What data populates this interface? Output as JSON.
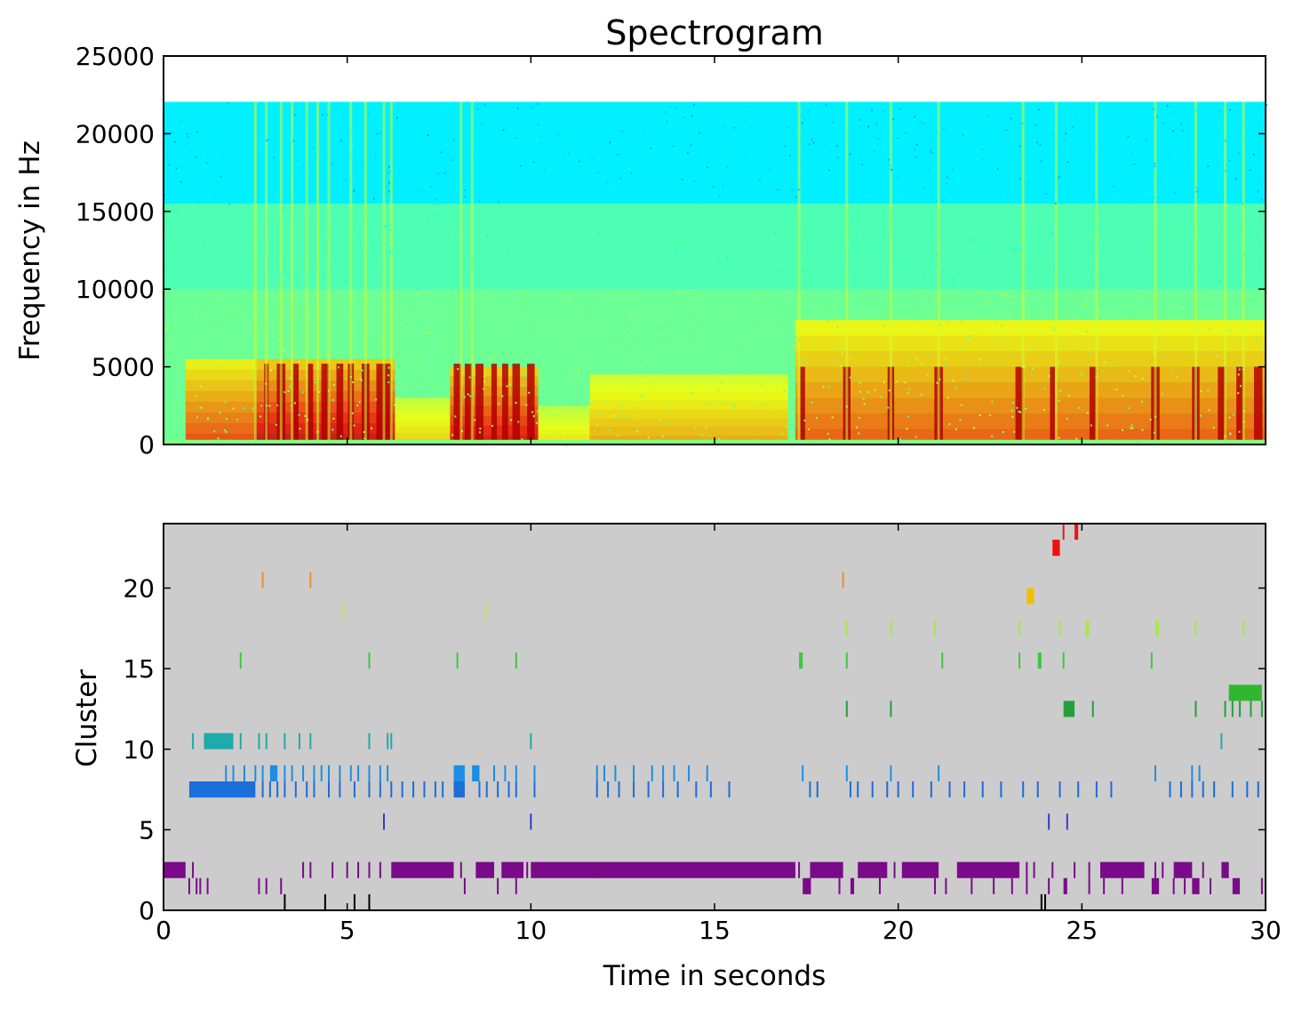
{
  "chart_data": [
    {
      "type": "heatmap",
      "title": "Spectrogram",
      "xlabel": "",
      "ylabel": "Frequency in Hz",
      "xlim": [
        0,
        30
      ],
      "ylim": [
        0,
        25000
      ],
      "x_ticks": [
        0,
        5,
        10,
        15,
        20,
        25,
        30
      ],
      "y_ticks": [
        0,
        5000,
        10000,
        15000,
        20000,
        25000
      ],
      "y_tick_labels": [
        "0",
        "5000",
        "10000",
        "15000",
        "20000",
        "25000"
      ],
      "data_top_hz": 22050,
      "noise_band_hz": [
        15500,
        22050
      ],
      "energy_segments": [
        {
          "start": 0.6,
          "end": 2.5,
          "max_hz": 5500,
          "level": 0.82
        },
        {
          "start": 2.5,
          "end": 6.3,
          "max_hz": 5500,
          "level": 0.92
        },
        {
          "start": 6.3,
          "end": 7.8,
          "max_hz": 3000,
          "level": 0.68
        },
        {
          "start": 7.8,
          "end": 10.2,
          "max_hz": 5000,
          "level": 0.9
        },
        {
          "start": 10.2,
          "end": 11.6,
          "max_hz": 2500,
          "level": 0.66
        },
        {
          "start": 11.6,
          "end": 17.0,
          "max_hz": 4500,
          "level": 0.72
        },
        {
          "start": 17.2,
          "end": 30.0,
          "max_hz": 8000,
          "level": 0.8
        }
      ],
      "burst_times": [
        2.8,
        3.2,
        3.6,
        4.0,
        4.4,
        4.8,
        5.1,
        5.5,
        5.9,
        6.1,
        8.0,
        8.3,
        8.6,
        9.0,
        9.3,
        9.6,
        10.0,
        17.4,
        18.6,
        19.8,
        21.1,
        23.3,
        24.2,
        25.3,
        27.0,
        28.1,
        28.8,
        29.3,
        29.8
      ],
      "vertical_streaks": [
        2.5,
        2.8,
        3.2,
        3.5,
        3.9,
        4.2,
        4.5,
        5.1,
        5.5,
        6.0,
        6.2,
        8.1,
        8.4,
        17.3,
        18.6,
        19.8,
        21.1,
        23.4,
        24.3,
        25.4,
        27.0,
        28.1,
        28.9,
        29.4
      ]
    },
    {
      "type": "scatter",
      "title": "",
      "xlabel": "Time in seconds",
      "ylabel": "Cluster",
      "xlim": [
        0,
        30
      ],
      "ylim": [
        0,
        24
      ],
      "x_ticks": [
        0,
        5,
        10,
        15,
        20,
        25,
        30
      ],
      "y_ticks": [
        0,
        5,
        10,
        15,
        20
      ],
      "series": [
        {
          "cluster": 0,
          "color": "#000000",
          "dense": [],
          "ticks": [
            3.3,
            4.4,
            5.2,
            5.6,
            23.9,
            24.0
          ]
        },
        {
          "cluster": 1,
          "color": "#7a0a8a",
          "dense": [
            [
              17.4,
              17.6
            ],
            [
              18.7,
              18.8
            ],
            [
              24.5,
              24.6
            ],
            [
              26.9,
              27.1
            ],
            [
              28.0,
              28.2
            ],
            [
              29.1,
              29.3
            ]
          ],
          "ticks": [
            0.7,
            0.9,
            1.0,
            1.2,
            2.6,
            2.8,
            3.2,
            8.2,
            9.1,
            9.6,
            17.6,
            18.4,
            19.5,
            21.0,
            21.3,
            22.0,
            22.6,
            23.1,
            23.5,
            24.1,
            25.2,
            25.6,
            26.1,
            27.5,
            27.8,
            28.5,
            29.9
          ]
        },
        {
          "cluster": 2,
          "color": "#7a0a8a",
          "dense": [
            [
              0.0,
              0.6
            ],
            [
              6.2,
              7.9
            ],
            [
              8.5,
              9.0
            ],
            [
              9.2,
              9.8
            ],
            [
              10.0,
              17.2
            ],
            [
              17.6,
              18.5
            ],
            [
              18.9,
              19.7
            ],
            [
              20.1,
              21.1
            ],
            [
              21.6,
              23.3
            ],
            [
              25.5,
              26.7
            ],
            [
              27.5,
              28.0
            ],
            [
              28.8,
              29.0
            ]
          ],
          "ticks": [
            0.8,
            3.8,
            4.0,
            4.6,
            5.0,
            5.3,
            5.6,
            5.9,
            8.1,
            9.9,
            11.7,
            17.3,
            19.9,
            23.5,
            23.7,
            24.2,
            24.8,
            25.2,
            27.0,
            27.2,
            28.3
          ]
        },
        {
          "cluster": 5,
          "color": "#3a3acb",
          "dense": [],
          "ticks": [
            6.0,
            10.0,
            24.1,
            24.6
          ]
        },
        {
          "cluster": 7,
          "color": "#1c6ed9",
          "dense": [
            [
              0.7,
              2.5
            ],
            [
              7.9,
              8.2
            ]
          ],
          "ticks": [
            2.7,
            2.9,
            3.1,
            3.3,
            3.6,
            3.9,
            4.1,
            4.5,
            4.8,
            5.2,
            5.6,
            5.9,
            6.2,
            6.5,
            6.8,
            7.1,
            7.4,
            7.6,
            8.6,
            8.8,
            9.1,
            9.4,
            9.6,
            10.1,
            11.8,
            12.1,
            12.4,
            12.8,
            13.2,
            13.6,
            14.0,
            14.5,
            14.9,
            15.4,
            17.6,
            17.8,
            18.7,
            18.9,
            19.3,
            19.7,
            20.0,
            20.4,
            20.9,
            21.4,
            21.8,
            22.3,
            22.8,
            23.4,
            23.8,
            24.4,
            24.9,
            25.4,
            25.8,
            27.4,
            27.7,
            28.0,
            28.3,
            28.6,
            29.1,
            29.5,
            29.8
          ]
        },
        {
          "cluster": 8,
          "color": "#1c8ee6",
          "dense": [
            [
              2.9,
              3.1
            ],
            [
              7.9,
              8.2
            ],
            [
              8.4,
              8.6
            ]
          ],
          "ticks": [
            1.7,
            1.9,
            2.2,
            2.5,
            2.7,
            3.3,
            3.5,
            3.8,
            4.1,
            4.3,
            4.5,
            4.8,
            5.1,
            5.3,
            5.6,
            5.9,
            6.1,
            9.0,
            9.3,
            9.6,
            10.1,
            11.8,
            12.0,
            12.3,
            12.8,
            13.3,
            13.6,
            13.9,
            14.3,
            14.8,
            17.4,
            18.6,
            19.8,
            21.1,
            27.0,
            28.0,
            28.2
          ]
        },
        {
          "cluster": 10,
          "color": "#20aaaa",
          "dense": [
            [
              1.1,
              1.9
            ]
          ],
          "ticks": [
            0.8,
            2.1,
            2.6,
            2.8,
            3.3,
            3.7,
            4.0,
            5.6,
            6.1,
            6.2,
            10.0,
            28.8
          ]
        },
        {
          "cluster": 12,
          "color": "#22a03a",
          "dense": [
            [
              24.5,
              24.8
            ]
          ],
          "ticks": [
            18.6,
            19.8,
            25.3,
            28.1,
            28.9,
            29.1,
            29.3,
            29.6,
            29.9
          ]
        },
        {
          "cluster": 13,
          "color": "#2fb82f",
          "dense": [
            [
              29.0,
              29.9
            ]
          ],
          "ticks": []
        },
        {
          "cluster": 15,
          "color": "#3ec83e",
          "dense": [
            [
              17.3,
              17.4
            ],
            [
              23.8,
              23.9
            ]
          ],
          "ticks": [
            2.1,
            5.6,
            8.0,
            9.6,
            18.6,
            21.2,
            23.3,
            24.5,
            26.9
          ]
        },
        {
          "cluster": 17,
          "color": "#a8e84a",
          "dense": [
            [
              25.1,
              25.2
            ],
            [
              27.0,
              27.1
            ]
          ],
          "ticks": [
            18.6,
            19.8,
            21.0,
            23.3,
            24.4,
            28.1,
            29.4
          ]
        },
        {
          "cluster": 18,
          "color": "#d8d860",
          "dense": [],
          "ticks": [
            4.9,
            8.8
          ]
        },
        {
          "cluster": 19,
          "color": "#f0c000",
          "dense": [
            [
              23.5,
              23.7
            ]
          ],
          "ticks": []
        },
        {
          "cluster": 20,
          "color": "#e89030",
          "dense": [],
          "ticks": [
            2.7,
            4.0,
            18.5
          ]
        },
        {
          "cluster": 22,
          "color": "#f01010",
          "dense": [
            [
              24.2,
              24.4
            ]
          ],
          "ticks": []
        },
        {
          "cluster": 23,
          "color": "#e81818",
          "dense": [
            [
              24.8,
              24.9
            ]
          ],
          "ticks": [
            24.5
          ]
        }
      ]
    }
  ]
}
